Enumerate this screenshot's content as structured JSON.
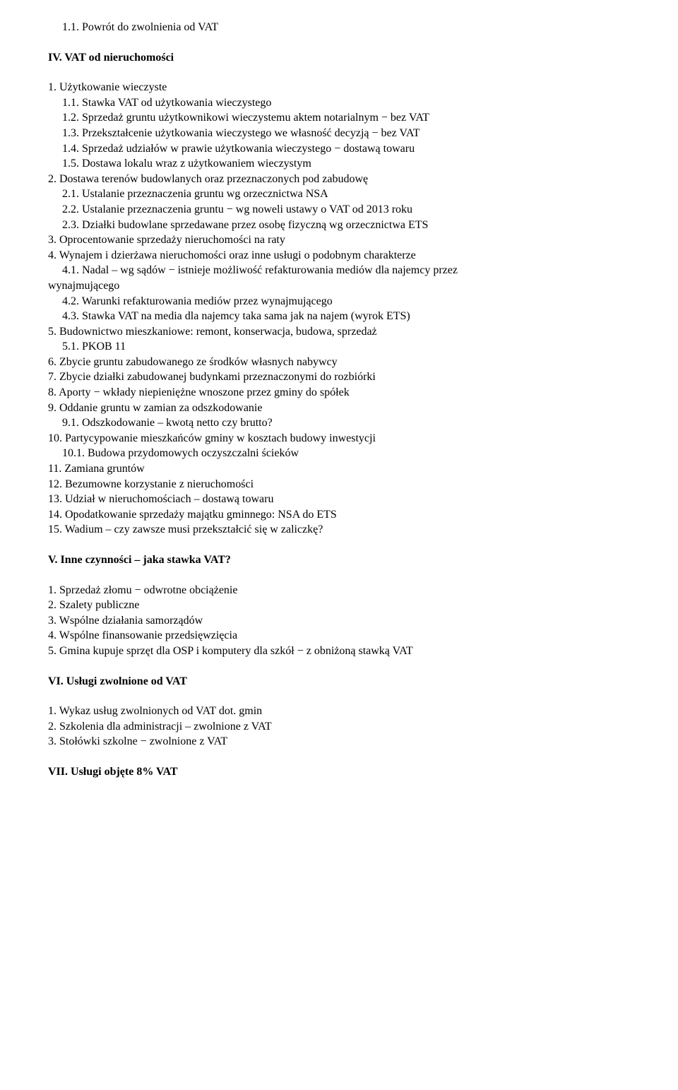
{
  "lines": [
    {
      "text": "1.1. Powrót do zwolnienia od VAT",
      "indent": 1
    },
    {
      "blank": true
    },
    {
      "text": "IV. VAT od nieruchomości",
      "heading": true
    },
    {
      "blank": true
    },
    {
      "text": "1. Użytkowanie wieczyste"
    },
    {
      "text": "1.1. Stawka VAT od użytkowania wieczystego",
      "indent": 1
    },
    {
      "text": "1.2. Sprzedaż gruntu użytkownikowi wieczystemu aktem notarialnym − bez VAT",
      "indent": 1
    },
    {
      "text": "1.3. Przekształcenie użytkowania wieczystego we własność decyzją − bez VAT",
      "indent": 1
    },
    {
      "text": "1.4. Sprzedaż udziałów w prawie użytkowania wieczystego − dostawą towaru",
      "indent": 1
    },
    {
      "text": "1.5. Dostawa lokalu wraz z użytkowaniem wieczystym",
      "indent": 1
    },
    {
      "text": "2. Dostawa terenów budowlanych oraz przeznaczonych pod zabudowę"
    },
    {
      "text": "2.1. Ustalanie przeznaczenia gruntu wg orzecznictwa NSA",
      "indent": 1
    },
    {
      "text": "2.2. Ustalanie przeznaczenia gruntu − wg noweli ustawy o VAT od 2013 roku",
      "indent": 1
    },
    {
      "text": "2.3. Działki budowlane sprzedawane przez osobę fizyczną wg orzecznictwa ETS",
      "indent": 1
    },
    {
      "text": "3. Oprocentowanie sprzedaży nieruchomości na raty"
    },
    {
      "text": "4. Wynajem i dzierżawa nieruchomości oraz inne usługi o podobnym charakterze"
    },
    {
      "text": "4.1. Nadal – wg sądów − istnieje możliwość refakturowania mediów dla najemcy przez",
      "indent": 1
    },
    {
      "text": "wynajmującego"
    },
    {
      "text": "4.2. Warunki refakturowania mediów przez wynajmującego",
      "indent": 1
    },
    {
      "text": "4.3. Stawka VAT na media dla najemcy taka sama jak na najem (wyrok ETS)",
      "indent": 1
    },
    {
      "text": "5. Budownictwo mieszkaniowe: remont, konserwacja, budowa, sprzedaż"
    },
    {
      "text": "5.1. PKOB 11",
      "indent": 1
    },
    {
      "text": "6. Zbycie gruntu zabudowanego ze środków własnych nabywcy"
    },
    {
      "text": "7. Zbycie działki zabudowanej budynkami przeznaczonymi do rozbiórki"
    },
    {
      "text": "8. Aporty − wkłady niepieniężne wnoszone przez gminy do spółek"
    },
    {
      "text": "9. Oddanie gruntu w zamian za odszkodowanie"
    },
    {
      "text": "9.1. Odszkodowanie – kwotą netto czy brutto?",
      "indent": 1
    },
    {
      "text": "10. Partycypowanie mieszkańców gminy w kosztach budowy inwestycji"
    },
    {
      "text": "10.1. Budowa przydomowych oczyszczalni ścieków",
      "indent": 1
    },
    {
      "text": "11. Zamiana gruntów"
    },
    {
      "text": "12. Bezumowne korzystanie z nieruchomości"
    },
    {
      "text": "13. Udział w nieruchomościach – dostawą towaru"
    },
    {
      "text": "14. Opodatkowanie sprzedaży majątku gminnego: NSA do ETS"
    },
    {
      "text": "15. Wadium – czy zawsze musi przekształcić się w zaliczkę?"
    },
    {
      "blank": true
    },
    {
      "text": "V. Inne czynności – jaka stawka VAT?",
      "heading": true
    },
    {
      "blank": true
    },
    {
      "text": "1. Sprzedaż złomu − odwrotne obciążenie"
    },
    {
      "text": "2. Szalety publiczne"
    },
    {
      "text": "3. Wspólne działania samorządów"
    },
    {
      "text": "4. Wspólne finansowanie przedsięwzięcia"
    },
    {
      "text": "5. Gmina kupuje sprzęt dla OSP i komputery dla szkół − z obniżoną stawką VAT"
    },
    {
      "blank": true
    },
    {
      "text": "VI. Usługi zwolnione od VAT",
      "heading": true
    },
    {
      "blank": true
    },
    {
      "text": "1. Wykaz usług zwolnionych od VAT dot. gmin"
    },
    {
      "text": "2. Szkolenia dla administracji – zwolnione z VAT"
    },
    {
      "text": "3. Stołówki szkolne − zwolnione z VAT"
    },
    {
      "blank": true
    },
    {
      "text": "VII. Usługi objęte 8% VAT",
      "heading": true
    }
  ]
}
